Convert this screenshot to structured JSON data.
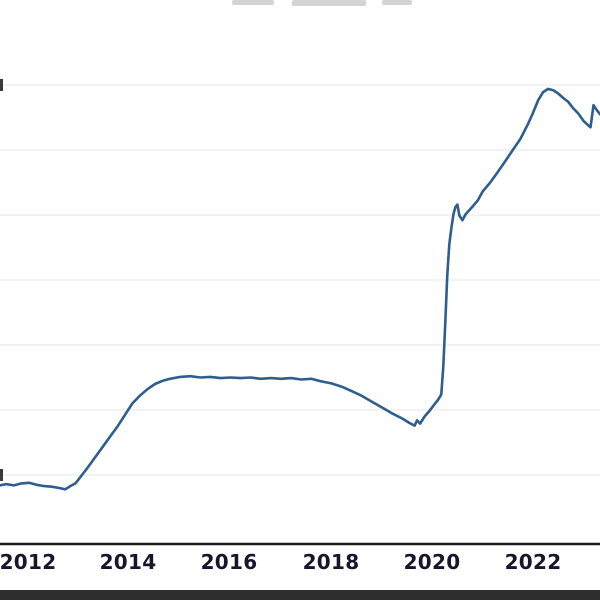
{
  "figure": {
    "background_color": "#ffffff",
    "bottom_bar_color": "#2e2e2e",
    "title_visible_text": ""
  },
  "chart_data": {
    "type": "line",
    "title": "",
    "xlabel": "",
    "ylabel": "",
    "legend": "none",
    "grid": true,
    "gridline_color": "#e7e7e7",
    "axis_line_color": "#1c1c1c",
    "tick_label_color": "#16162c",
    "line_color": "#2d5e8d",
    "x_tick_labels": [
      "2012",
      "2014",
      "2016",
      "2018",
      "2020",
      "2022"
    ],
    "x_tick_values": [
      2012,
      2014,
      2016,
      2018,
      2020,
      2022
    ],
    "x_range": [
      2011.42,
      2023.33
    ],
    "ylim": [
      1.9,
      9.6
    ],
    "y_gridlines": [
      3,
      4,
      5,
      6,
      7,
      8,
      9
    ],
    "series": [
      {
        "name": "series-1",
        "color": "#2d5e8d",
        "points": [
          [
            2011.42,
            2.84
          ],
          [
            2011.55,
            2.86
          ],
          [
            2011.7,
            2.84
          ],
          [
            2011.85,
            2.87
          ],
          [
            2012.0,
            2.88
          ],
          [
            2012.15,
            2.85
          ],
          [
            2012.3,
            2.83
          ],
          [
            2012.45,
            2.82
          ],
          [
            2012.6,
            2.8
          ],
          [
            2012.72,
            2.78
          ],
          [
            2012.82,
            2.83
          ],
          [
            2012.92,
            2.87
          ],
          [
            2013.0,
            2.95
          ],
          [
            2013.15,
            3.1
          ],
          [
            2013.3,
            3.26
          ],
          [
            2013.45,
            3.42
          ],
          [
            2013.6,
            3.58
          ],
          [
            2013.75,
            3.74
          ],
          [
            2013.9,
            3.92
          ],
          [
            2014.05,
            4.1
          ],
          [
            2014.2,
            4.22
          ],
          [
            2014.35,
            4.32
          ],
          [
            2014.5,
            4.4
          ],
          [
            2014.65,
            4.45
          ],
          [
            2014.8,
            4.48
          ],
          [
            2015.0,
            4.51
          ],
          [
            2015.2,
            4.52
          ],
          [
            2015.4,
            4.5
          ],
          [
            2015.6,
            4.51
          ],
          [
            2015.8,
            4.49
          ],
          [
            2016.0,
            4.5
          ],
          [
            2016.2,
            4.49
          ],
          [
            2016.4,
            4.5
          ],
          [
            2016.6,
            4.48
          ],
          [
            2016.8,
            4.49
          ],
          [
            2017.0,
            4.48
          ],
          [
            2017.2,
            4.49
          ],
          [
            2017.4,
            4.47
          ],
          [
            2017.6,
            4.48
          ],
          [
            2017.8,
            4.44
          ],
          [
            2018.0,
            4.41
          ],
          [
            2018.2,
            4.36
          ],
          [
            2018.4,
            4.29
          ],
          [
            2018.6,
            4.22
          ],
          [
            2018.8,
            4.13
          ],
          [
            2019.0,
            4.04
          ],
          [
            2019.2,
            3.95
          ],
          [
            2019.4,
            3.87
          ],
          [
            2019.55,
            3.8
          ],
          [
            2019.65,
            3.76
          ],
          [
            2019.7,
            3.84
          ],
          [
            2019.76,
            3.79
          ],
          [
            2019.85,
            3.9
          ],
          [
            2019.95,
            3.99
          ],
          [
            2020.05,
            4.09
          ],
          [
            2020.12,
            4.16
          ],
          [
            2020.18,
            4.24
          ],
          [
            2020.22,
            4.67
          ],
          [
            2020.26,
            5.35
          ],
          [
            2020.3,
            6.08
          ],
          [
            2020.34,
            6.55
          ],
          [
            2020.38,
            6.8
          ],
          [
            2020.42,
            7.01
          ],
          [
            2020.46,
            7.12
          ],
          [
            2020.5,
            7.16
          ],
          [
            2020.54,
            6.99
          ],
          [
            2020.6,
            6.92
          ],
          [
            2020.66,
            7.01
          ],
          [
            2020.72,
            7.06
          ],
          [
            2020.8,
            7.13
          ],
          [
            2020.9,
            7.22
          ],
          [
            2021.0,
            7.36
          ],
          [
            2021.15,
            7.5
          ],
          [
            2021.3,
            7.66
          ],
          [
            2021.45,
            7.83
          ],
          [
            2021.6,
            8.0
          ],
          [
            2021.75,
            8.17
          ],
          [
            2021.9,
            8.4
          ],
          [
            2022.0,
            8.57
          ],
          [
            2022.1,
            8.76
          ],
          [
            2022.2,
            8.89
          ],
          [
            2022.3,
            8.94
          ],
          [
            2022.4,
            8.92
          ],
          [
            2022.5,
            8.87
          ],
          [
            2022.6,
            8.8
          ],
          [
            2022.7,
            8.74
          ],
          [
            2022.8,
            8.64
          ],
          [
            2022.9,
            8.56
          ],
          [
            2023.0,
            8.45
          ],
          [
            2023.08,
            8.39
          ],
          [
            2023.14,
            8.35
          ],
          [
            2023.2,
            8.69
          ],
          [
            2023.25,
            8.63
          ],
          [
            2023.33,
            8.55
          ]
        ]
      }
    ]
  }
}
